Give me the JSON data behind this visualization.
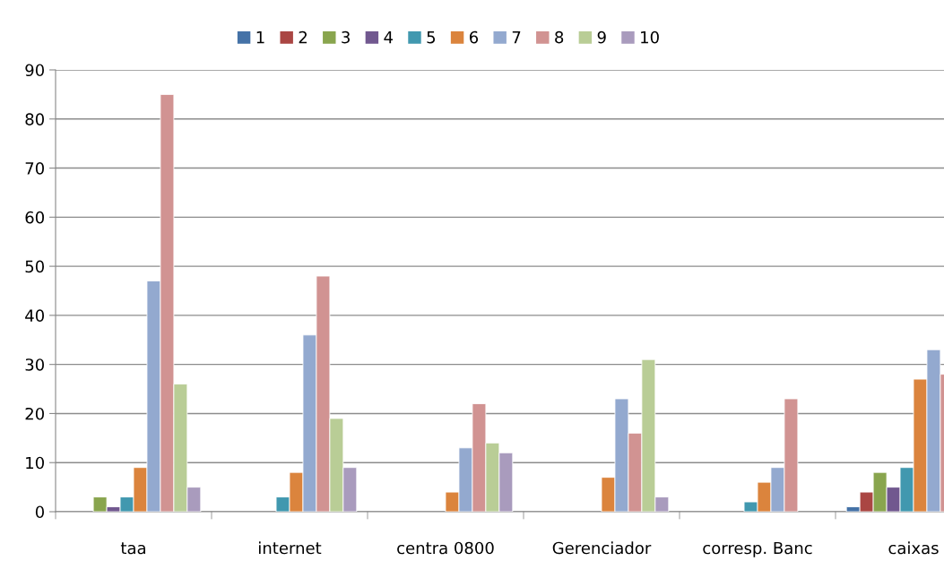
{
  "chart_data": {
    "type": "bar",
    "categories": [
      "taa",
      "internet",
      "centra 0800",
      "Gerenciador",
      "corresp. Banc",
      "caixas"
    ],
    "series": [
      {
        "name": "1",
        "color": "#4572a7",
        "values": [
          null,
          null,
          null,
          null,
          null,
          1
        ]
      },
      {
        "name": "2",
        "color": "#aa4643",
        "values": [
          null,
          null,
          null,
          null,
          null,
          4
        ]
      },
      {
        "name": "3",
        "color": "#89a54e",
        "values": [
          3,
          null,
          null,
          null,
          null,
          8
        ]
      },
      {
        "name": "4",
        "color": "#71588f",
        "values": [
          1,
          null,
          null,
          null,
          null,
          5
        ]
      },
      {
        "name": "5",
        "color": "#4198af",
        "values": [
          3,
          3,
          null,
          null,
          2,
          9
        ]
      },
      {
        "name": "6",
        "color": "#db843d",
        "values": [
          9,
          8,
          4,
          7,
          6,
          27
        ]
      },
      {
        "name": "7",
        "color": "#93a9cf",
        "values": [
          47,
          36,
          13,
          23,
          9,
          33
        ]
      },
      {
        "name": "8",
        "color": "#d19392",
        "values": [
          85,
          48,
          22,
          16,
          23,
          28
        ]
      },
      {
        "name": "9",
        "color": "#b9cd96",
        "values": [
          26,
          19,
          14,
          31,
          null,
          null
        ]
      },
      {
        "name": "10",
        "color": "#a99bbd",
        "values": [
          5,
          9,
          12,
          3,
          null,
          null
        ]
      }
    ],
    "ylim": [
      0,
      90
    ],
    "yticks": [
      0,
      10,
      20,
      30,
      40,
      50,
      60,
      70,
      80,
      90
    ],
    "grid": "y",
    "legend": "top"
  }
}
